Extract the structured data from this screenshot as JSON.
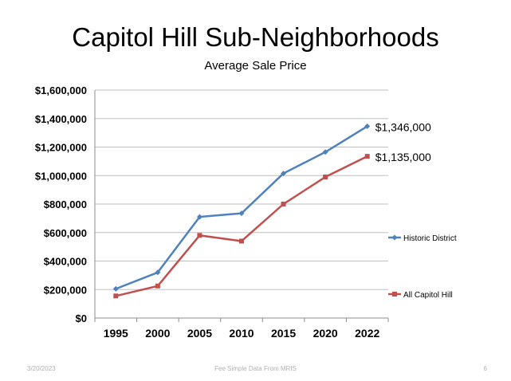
{
  "slide": {
    "title": "Capitol Hill Sub-Neighborhoods",
    "footer_date": "3/20/2023",
    "footer_source": "Fee Simple Data From MRIS",
    "footer_page": "6"
  },
  "chart_data": {
    "type": "line",
    "title": "Average Sale Price",
    "xlabel": "",
    "ylabel": "",
    "categories": [
      "1995",
      "2000",
      "2005",
      "2010",
      "2015",
      "2020",
      "2022"
    ],
    "ylim": [
      0,
      1600000
    ],
    "y_ticks": [
      0,
      200000,
      400000,
      600000,
      800000,
      1000000,
      1200000,
      1400000,
      1600000
    ],
    "y_tick_labels": [
      "$0",
      "$200,000",
      "$400,000",
      "$600,000",
      "$800,000",
      "$1,000,000",
      "$1,200,000",
      "$1,400,000",
      "$1,600,000"
    ],
    "grid": true,
    "legend_position": "right",
    "series": [
      {
        "name": "Historic District",
        "color": "#4f81bd",
        "values": [
          205000,
          320000,
          710000,
          735000,
          1015000,
          1165000,
          1346000
        ],
        "end_label": "$1,346,000"
      },
      {
        "name": "All Capitol Hill",
        "color": "#c0504d",
        "values": [
          155000,
          225000,
          580000,
          540000,
          800000,
          990000,
          1135000
        ],
        "end_label": "$1,135,000"
      }
    ]
  }
}
